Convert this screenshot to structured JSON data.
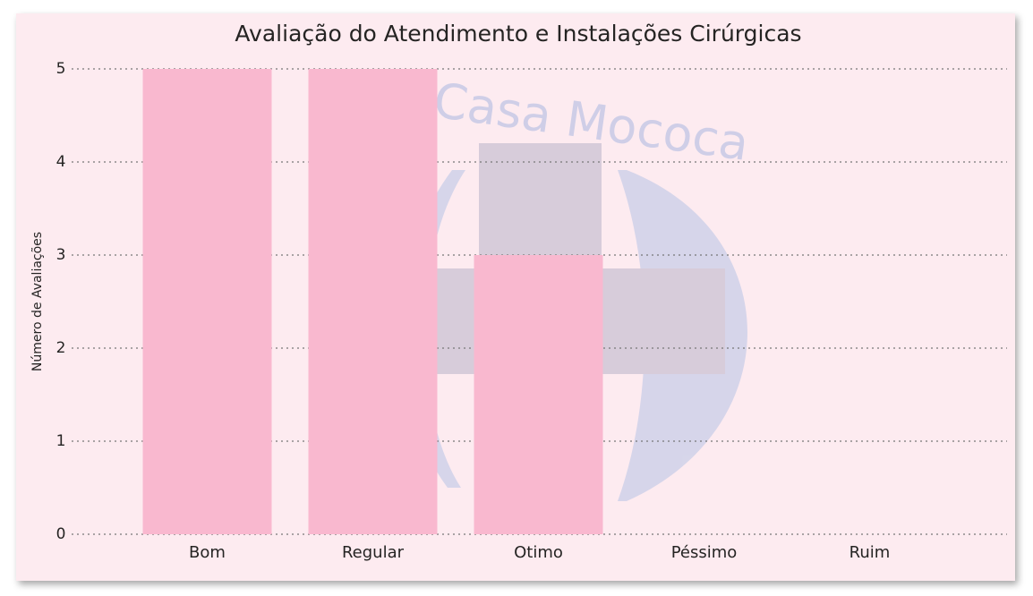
{
  "chart_data": {
    "type": "bar",
    "title": "Avaliação do Atendimento e Instalações Cirúrgicas",
    "y_label": "Número de Avaliações",
    "watermark": "Casa Mococa",
    "categories": [
      "Bom",
      "Regular",
      "Otimo",
      "Péssimo",
      "Ruim"
    ],
    "values": [
      5,
      5,
      3,
      0,
      0
    ],
    "color": "#f9b8cf",
    "ylim": [
      0,
      5
    ],
    "yticks": [
      0,
      1,
      2,
      3,
      4,
      5
    ],
    "grid": true
  }
}
